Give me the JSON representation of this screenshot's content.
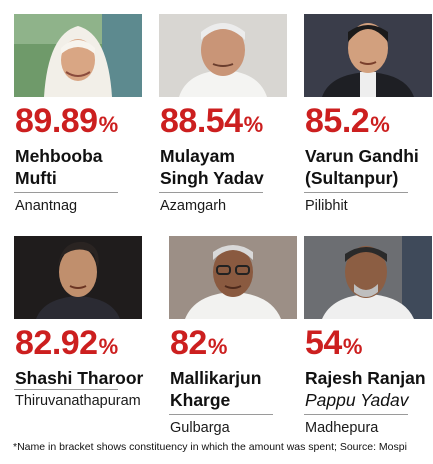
{
  "politicians": [
    {
      "percent": "89.89",
      "symbol": "%",
      "name_line1": "Mehbooba",
      "name_line2": "Mufti",
      "place": "Anantnag"
    },
    {
      "percent": "88.54",
      "symbol": "%",
      "name_line1": "Mulayam",
      "name_line2": "Singh Yadav",
      "place": "Azamgarh"
    },
    {
      "percent": "85.2",
      "symbol": "%",
      "name_line1": "Varun Gandhi",
      "name_line2": "(Sultanpur)",
      "place": "Pilibhit"
    },
    {
      "percent": "82.92",
      "symbol": "%",
      "name_line1": "Shashi Tharoor",
      "name_line2": "",
      "place": "Thiruvanathapuram"
    },
    {
      "percent": "82",
      "symbol": "%",
      "name_line1": "Mallikarjun",
      "name_line2": "Kharge",
      "place": "Gulbarga"
    },
    {
      "percent": "54",
      "symbol": "%",
      "name_line1": "Rajesh Ranjan",
      "name_line2": "Pappu Yadav",
      "place": "Madhepura"
    }
  ],
  "footnote": "*Name in bracket shows constituency in which the amount was spent; Source: Mospi",
  "colors": {
    "percent": "#cc1f1f",
    "rule": "#9a9a9a"
  }
}
